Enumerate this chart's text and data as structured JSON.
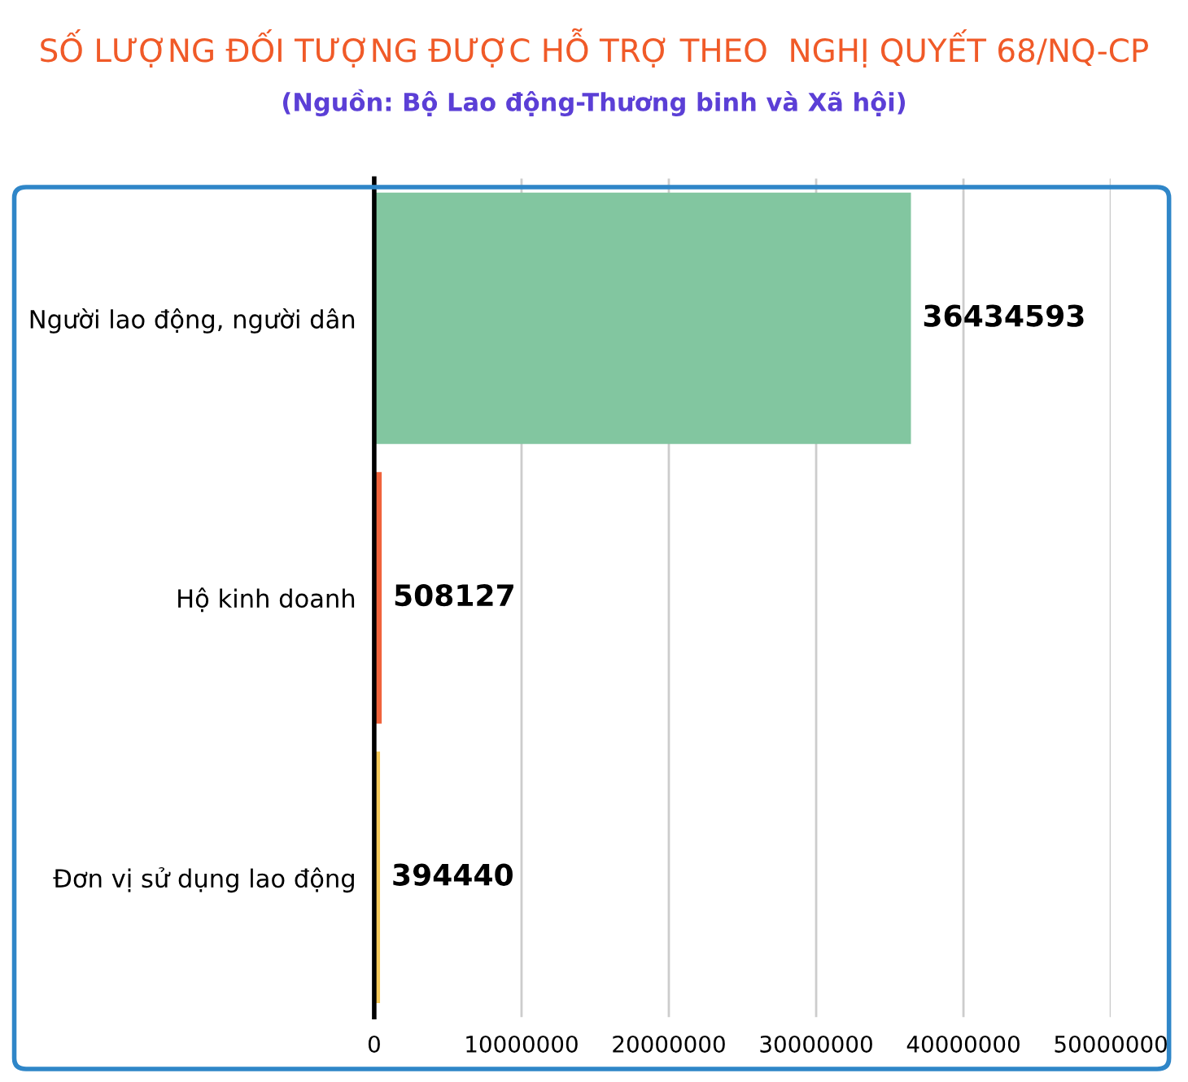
{
  "chart_data": {
    "type": "bar",
    "orientation": "horizontal",
    "title": "SỐ LƯỢNG ĐỐI TƯỢNG ĐƯỢC HỖ TRỢ THEO  NGHỊ QUYẾT 68/NQ-CP",
    "subtitle": "(Nguồn: Bộ Lao động-Thương binh và Xã hội)",
    "categories": [
      "Người lao động, người dân",
      "Hộ kinh doanh",
      "Đơn vị sử dụng lao động"
    ],
    "values": [
      36434593,
      508127,
      394440
    ],
    "colors": [
      "#82c6a0",
      "#f0643c",
      "#f5c95a"
    ],
    "xlim": [
      0,
      50000000
    ],
    "xticks": [
      0,
      10000000,
      20000000,
      30000000,
      40000000,
      50000000
    ],
    "grid": "x",
    "data_labels": true,
    "legend": false
  }
}
